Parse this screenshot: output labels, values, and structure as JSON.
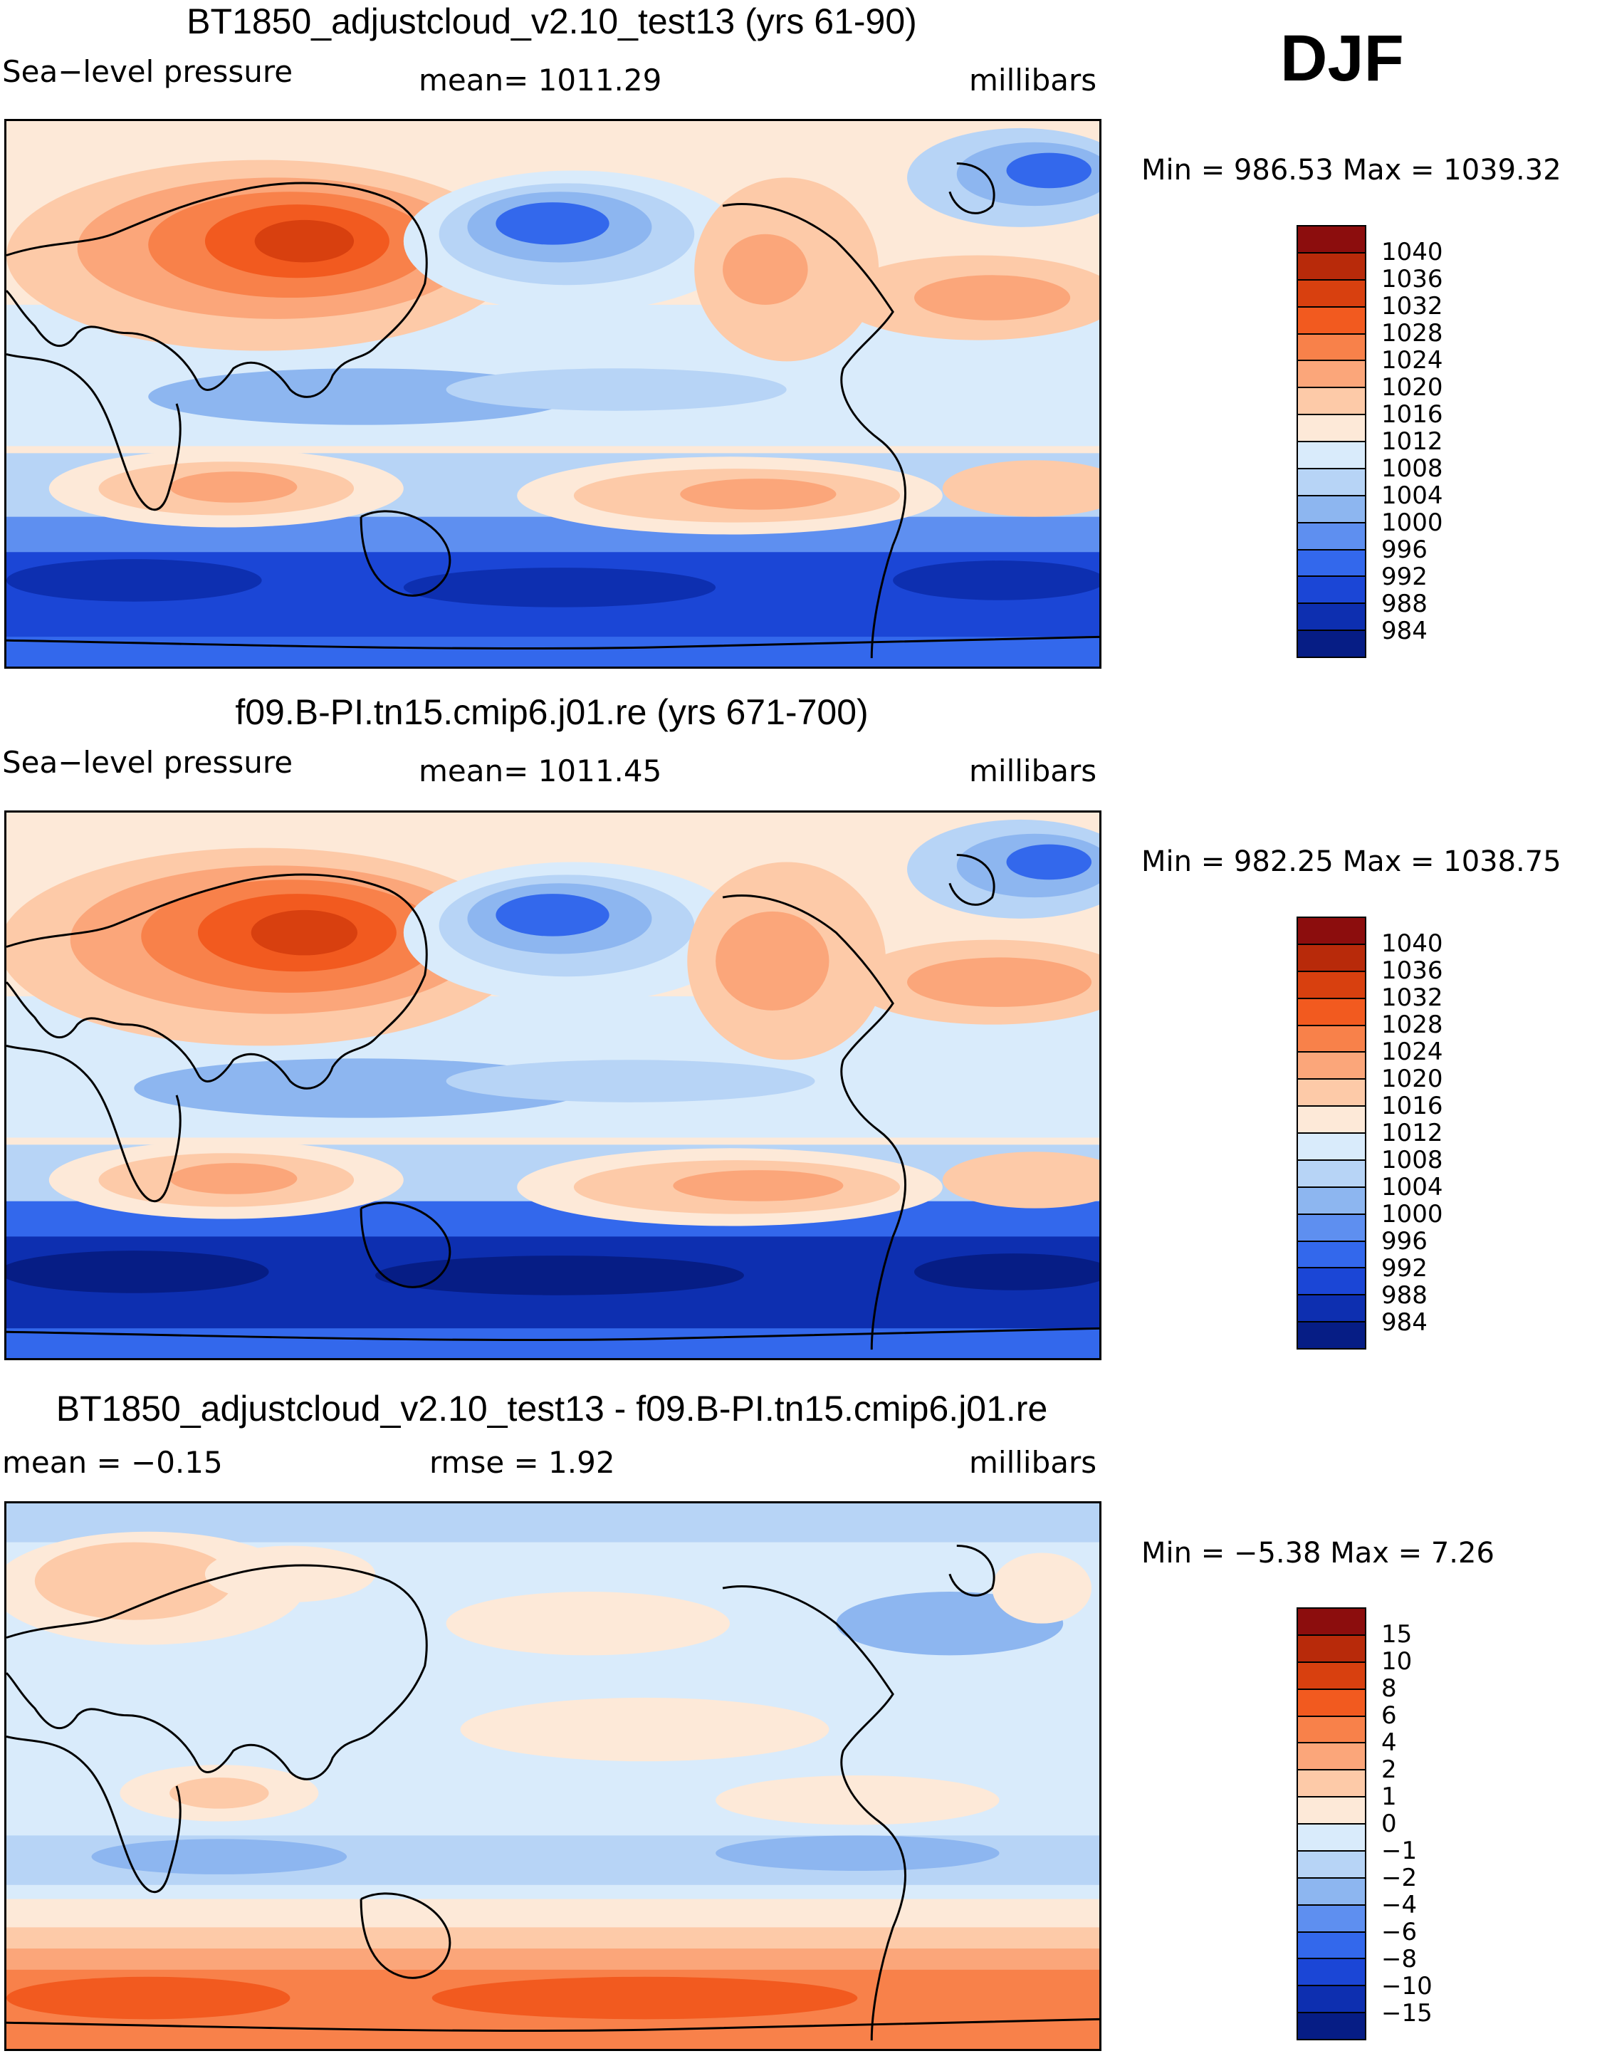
{
  "season": "DJF",
  "panels": [
    {
      "id": "p1",
      "title": "BT1850_adjustcloud_v2.10_test13 (yrs 61-90)",
      "left_label": "Sea−level pressure",
      "center_label": "mean=  1011.29",
      "right_label": "millibars",
      "minmax": "Min  =  986.53  Max  =  1039.32",
      "map_name": "Sea-level pressure DJF, BT1850_adjustcloud_v2.10_test13"
    },
    {
      "id": "p2",
      "title": "f09.B-PI.tn15.cmip6.j01.re (yrs 671-700)",
      "left_label": "Sea−level pressure",
      "center_label": "mean=  1011.45",
      "right_label": "millibars",
      "minmax": "Min  =  982.25  Max  =  1038.75",
      "map_name": "Sea-level pressure DJF, f09.B-PI.tn15.cmip6.j01.re"
    },
    {
      "id": "p3",
      "title": "BT1850_adjustcloud_v2.10_test13 - f09.B-PI.tn15.cmip6.j01.re",
      "left_label": "mean  =    −0.15",
      "center_label": "rmse  =     1.92",
      "right_label": "millibars",
      "minmax": "Min  =    −5.38  Max  =      7.26",
      "map_name": "Sea-level pressure difference DJF"
    }
  ],
  "colorbars": {
    "absolute": {
      "labels": [
        "1040",
        "1036",
        "1032",
        "1028",
        "1024",
        "1020",
        "1016",
        "1012",
        "1008",
        "1004",
        "1000",
        "996",
        "992",
        "988",
        "984"
      ],
      "colors": [
        "#8c0d0d",
        "#b82a0a",
        "#d8400f",
        "#f25a1f",
        "#f8814a",
        "#fba67a",
        "#fdcaa8",
        "#fde9d8",
        "#d9ebfb",
        "#b7d4f6",
        "#8db6f0",
        "#5e8ff0",
        "#3368ec",
        "#1b46d6",
        "#0d2fb0",
        "#061d85"
      ]
    },
    "difference": {
      "labels": [
        "15",
        "10",
        "8",
        "6",
        "4",
        "2",
        "1",
        "0",
        "−1",
        "−2",
        "−4",
        "−6",
        "−8",
        "−10",
        "−15"
      ],
      "colors": [
        "#8c0d0d",
        "#b82a0a",
        "#d8400f",
        "#f25a1f",
        "#f8814a",
        "#fba67a",
        "#fdcaa8",
        "#fde9d8",
        "#d9ebfb",
        "#b7d4f6",
        "#8db6f0",
        "#5e8ff0",
        "#3368ec",
        "#1b46d6",
        "#0d2fb0",
        "#061d85"
      ]
    }
  }
}
